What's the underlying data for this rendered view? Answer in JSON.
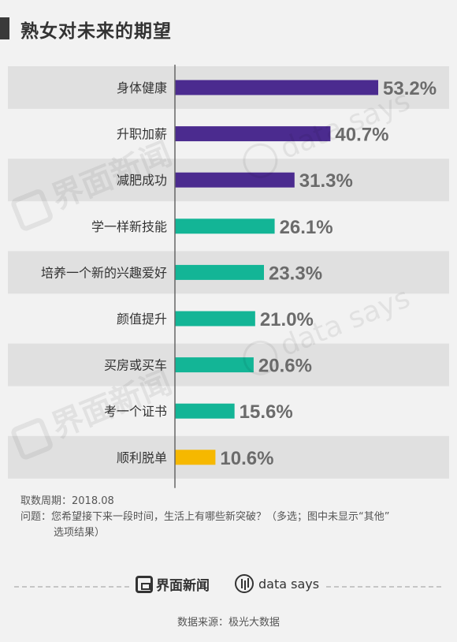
{
  "title": "熟女对未来的期望",
  "colors": {
    "title_block": "#3a3a3a",
    "purple": "#4b2b8f",
    "teal": "#13b596",
    "yellow": "#f6b800",
    "value_text": "#6b6b6b",
    "row_band": "#e0e0e0",
    "axis": "#666666",
    "dash": "#b8b8b8"
  },
  "chart_data": {
    "type": "bar",
    "orientation": "horizontal",
    "title": "熟女对未来的期望",
    "categories": [
      "身体健康",
      "升职加薪",
      "减肥成功",
      "学一样新技能",
      "培养一个新的兴趣爱好",
      "颜值提升",
      "买房或买车",
      "考一个证书",
      "顺利脱单"
    ],
    "values": [
      53.2,
      40.7,
      31.3,
      26.1,
      23.3,
      21.0,
      20.6,
      15.6,
      10.6
    ],
    "value_labels": [
      "53.2%",
      "40.7%",
      "31.3%",
      "26.1%",
      "23.3%",
      "21.0%",
      "20.6%",
      "15.6%",
      "10.6%"
    ],
    "bar_colors": [
      "purple",
      "purple",
      "purple",
      "teal",
      "teal",
      "teal",
      "teal",
      "teal",
      "yellow"
    ],
    "xlim": [
      0,
      53.2
    ],
    "xlabel": "",
    "ylabel": "",
    "grid": false,
    "legend": "none"
  },
  "notes": {
    "period": "取数周期：2018.08",
    "question": "问题：您希望接下来一段时间，生活上有哪些新突破？（多选；图中未显示“其他”",
    "question_cont": "选项结果）"
  },
  "watermarks": {
    "jiemian": "界面新闻",
    "datasays": "data says"
  },
  "footer": {
    "brand_jiemian": "界面新闻",
    "brand_datasays": "data says",
    "source": "数据来源：极光大数据"
  }
}
